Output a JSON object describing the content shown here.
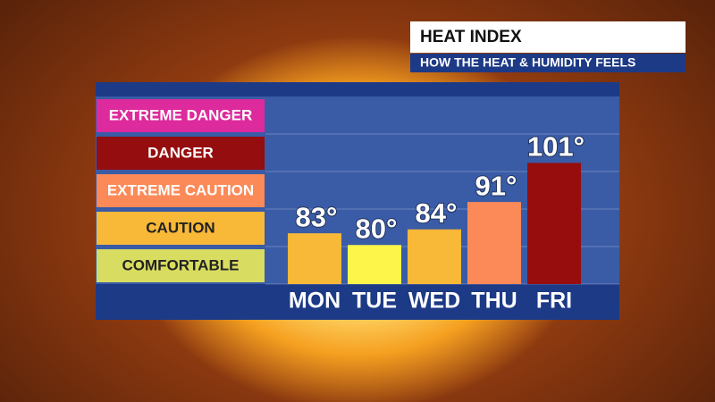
{
  "chart_data": {
    "type": "bar",
    "title": "HEAT INDEX",
    "subtitle": "HOW THE HEAT & HUMIDITY FEELS",
    "categories": [
      "MON",
      "TUE",
      "WED",
      "THU",
      "FRI"
    ],
    "values": [
      83,
      80,
      84,
      91,
      101
    ],
    "value_labels": [
      "83°",
      "80°",
      "84°",
      "91°",
      "101°"
    ],
    "colors": [
      "#f8b838",
      "#fdf54a",
      "#f8b838",
      "#fb8a58",
      "#970d0e"
    ],
    "ylim": [
      70,
      118
    ],
    "bands": [
      {
        "label": "EXTREME DANGER",
        "color": "#dd2a9c",
        "text_color": "#ffffff"
      },
      {
        "label": "DANGER",
        "color": "#950d0e",
        "text_color": "#ffffff"
      },
      {
        "label": "EXTREME CAUTION",
        "color": "#fb8a58",
        "text_color": "#ffffff"
      },
      {
        "label": "CAUTION",
        "color": "#f8b838",
        "text_color": "#222222"
      },
      {
        "label": "COMFORTABLE",
        "color": "#d8dc60",
        "text_color": "#222222"
      }
    ]
  }
}
